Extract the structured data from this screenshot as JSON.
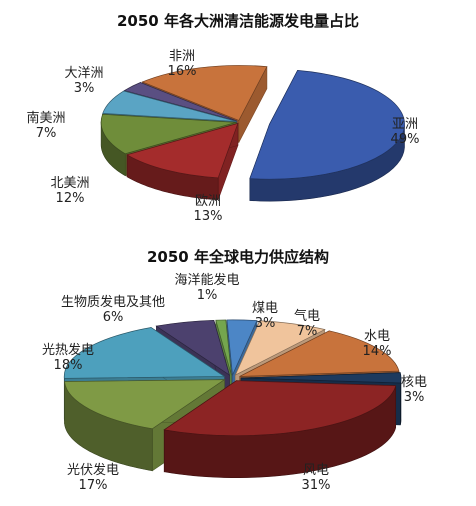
{
  "chart_data": [
    {
      "type": "pie",
      "title": "2050 年各大洲清洁能源发电量占比",
      "unit": "%",
      "categories": [
        "亚洲",
        "欧洲",
        "北美洲",
        "南美洲",
        "大洋洲",
        "非洲"
      ],
      "values": [
        49,
        13,
        12,
        7,
        3,
        16
      ],
      "value_labels": [
        "49%",
        "13%",
        "12%",
        "7%",
        "3%",
        "16%"
      ],
      "exploded": [
        "亚洲"
      ],
      "colors": {
        "亚洲": "#3a5cae",
        "欧洲": "#a42c2c",
        "北美洲": "#6f8d3a",
        "南美洲": "#5aa4c4",
        "大洋洲": "#5a4f82",
        "非洲": "#c8733c"
      }
    },
    {
      "type": "pie",
      "title": "2050 年全球电力供应结构",
      "unit": "%",
      "categories": [
        "煤电",
        "气电",
        "水电",
        "核电",
        "风电",
        "光伏发电",
        "光热发电",
        "生物质发电及其他",
        "海洋能发电"
      ],
      "values": [
        3,
        7,
        14,
        3,
        31,
        17,
        18,
        6,
        1
      ],
      "value_labels": [
        "3%",
        "7%",
        "14%",
        "3%",
        "31%",
        "17%",
        "18%",
        "6%",
        "1%"
      ],
      "exploded": [
        "煤电",
        "气电",
        "水电",
        "核电",
        "风电",
        "光伏发电",
        "光热发电",
        "生物质发电及其他",
        "海洋能发电"
      ],
      "colors": {
        "煤电": "#4c86c6",
        "气电": "#f0c49c",
        "水电": "#c8733c",
        "核电": "#1d3a5e",
        "风电": "#8c2424",
        "光伏发电": "#7f9a45",
        "光热发电": "#4da0bd",
        "生物质发电及其他": "#4c416e",
        "海洋能发电": "#74a64e"
      }
    }
  ]
}
